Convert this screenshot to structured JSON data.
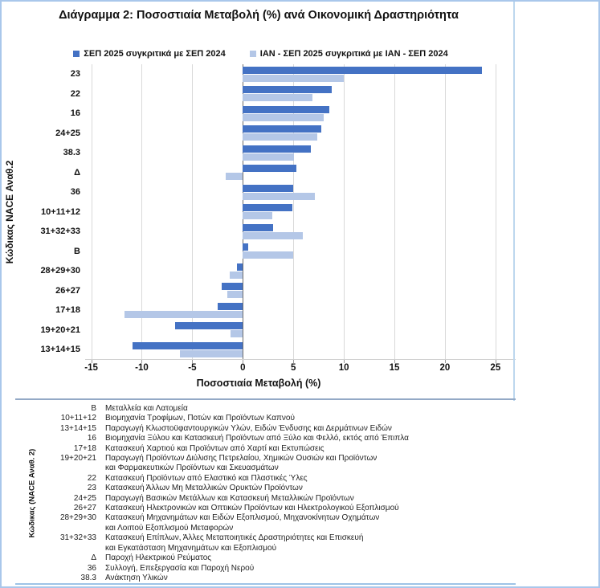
{
  "chart_data": {
    "type": "bar",
    "orientation": "horizontal",
    "title": "Διάγραμμα 2: Ποσοστιαία Μεταβολή (%) ανά Οικονομική Δραστηριότητα",
    "xlabel": "Ποσοστιαία Μεταβολή (%)",
    "ylabel": "Κώδικας NACE Αναθ.2",
    "xlim": [
      -15,
      25
    ],
    "xticks": [
      -15,
      -10,
      -5,
      0,
      5,
      10,
      15,
      20,
      25
    ],
    "grid": true,
    "legend_position": "top",
    "categories": [
      "23",
      "22",
      "16",
      "24+25",
      "38.3",
      "Δ",
      "36",
      "10+11+12",
      "31+32+33",
      "B",
      "28+29+30",
      "26+27",
      "17+18",
      "19+20+21",
      "13+14+15"
    ],
    "series": [
      {
        "name": "ΣΕΠ 2025 συγκριτικά με ΣΕΠ 2024",
        "color": "#4472C4",
        "values": [
          23.7,
          8.8,
          8.6,
          7.8,
          6.7,
          5.3,
          5.0,
          4.9,
          3.0,
          0.5,
          -0.6,
          -2.1,
          -2.5,
          -6.7,
          -10.9
        ]
      },
      {
        "name": "ΙΑΝ - ΣΕΠ 2025 συγκριτικά με ΙΑΝ - ΣΕΠ 2024",
        "color": "#B4C7E7",
        "values": [
          10.0,
          6.9,
          8.0,
          7.4,
          5.1,
          -1.7,
          7.1,
          2.9,
          5.9,
          5.0,
          -1.3,
          -1.5,
          -11.7,
          -1.2,
          -6.2
        ]
      }
    ]
  },
  "code_table": {
    "side_label": "Κώδικας (NACE Αναθ. 2)",
    "rows": [
      {
        "code": "B",
        "lines": [
          "Μεταλλεία και Λατομεία"
        ]
      },
      {
        "code": "10+11+12",
        "lines": [
          "Βιομηχανία Τροφίμων, Ποτών και Προϊόντων Καπνού"
        ]
      },
      {
        "code": "13+14+15",
        "lines": [
          "Παραγωγή Κλωστοϋφαντουργικών Υλών, Ειδών Ένδυσης και Δερμάτινων Ειδών"
        ]
      },
      {
        "code": "16",
        "lines": [
          "Βιομηχανία Ξύλου και Κατασκευή Προϊόντων από Ξύλο και Φελλό, εκτός από Έπιπλα"
        ]
      },
      {
        "code": "17+18",
        "lines": [
          "Κατασκευή Χαρτιού και Προϊόντων από Χαρτί και Εκτυπώσεις"
        ]
      },
      {
        "code": "19+20+21",
        "lines": [
          "Παραγωγή Προϊόντων Διύλισης Πετρελαίου, Χημικών Ουσιών και Προϊόντων",
          "και Φαρμακευτικών Προϊόντων και Σκευασμάτων"
        ]
      },
      {
        "code": "22",
        "lines": [
          "Κατασκευή Προϊόντων από Ελαστικό και Πλαστικές Ύλες"
        ]
      },
      {
        "code": "23",
        "lines": [
          "Κατασκευή Άλλων Μη Μεταλλικών Ορυκτών Προϊόντων"
        ]
      },
      {
        "code": "24+25",
        "lines": [
          "Παραγωγή Βασικών Μετάλλων και Κατασκευή Μεταλλικών Προϊόντων"
        ]
      },
      {
        "code": "26+27",
        "lines": [
          "Κατασκευή Ηλεκτρονικών και Οπτικών Προϊόντων και Ηλεκτρολογικού Εξοπλισμού"
        ]
      },
      {
        "code": "28+29+30",
        "lines": [
          "Κατασκευή Μηχανημάτων και Ειδών Εξοπλισμού, Μηχανοκίνητων Οχημάτων",
          "και Λοιπού Εξοπλισμού Μεταφορών"
        ]
      },
      {
        "code": "31+32+33",
        "lines": [
          "Κατασκευή Επίπλων, Άλλες Μεταποιητικές Δραστηριότητες και Επισκευή",
          "και Εγκατάσταση Μηχανημάτων και Εξοπλισμού"
        ]
      },
      {
        "code": "Δ",
        "lines": [
          "Παροχή Ηλεκτρικού Ρεύματος"
        ]
      },
      {
        "code": "36",
        "lines": [
          "Συλλογή, Επεξεργασία και Παροχή Νερού"
        ]
      },
      {
        "code": "38.3",
        "lines": [
          "Ανάκτηση Υλικών"
        ]
      }
    ]
  }
}
